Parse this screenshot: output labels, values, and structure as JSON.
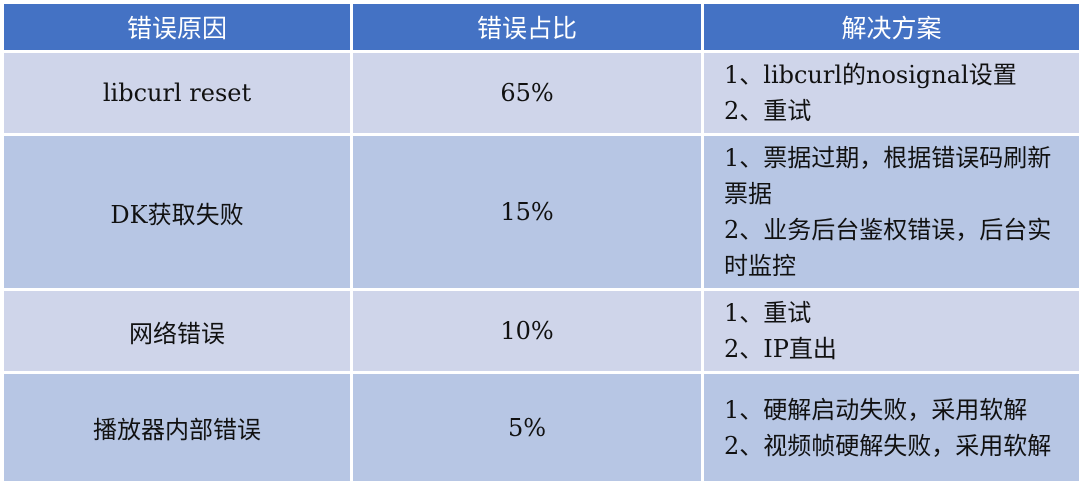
{
  "colors": {
    "header": "#4472c4",
    "row_light": "#cfd5ea",
    "row_dark": "#b7c6e4"
  },
  "headers": [
    "错误原因",
    "错误占比",
    "解决方案"
  ],
  "rows": [
    {
      "cause": "libcurl reset",
      "ratio": "65%",
      "solutions": [
        "1、libcurl的nosignal设置",
        "2、重试"
      ]
    },
    {
      "cause": "DK获取失败",
      "ratio": "15%",
      "solutions": [
        "1、票据过期，根据错误码刷新票据",
        "2、业务后台鉴权错误，后台实时监控"
      ]
    },
    {
      "cause": "网络错误",
      "ratio": "10%",
      "solutions": [
        "1、重试",
        "2、IP直出"
      ]
    },
    {
      "cause": "播放器内部错误",
      "ratio": "5%",
      "solutions": [
        "1、硬解启动失败，采用软解",
        "2、视频帧硬解失败，采用软解"
      ]
    }
  ]
}
